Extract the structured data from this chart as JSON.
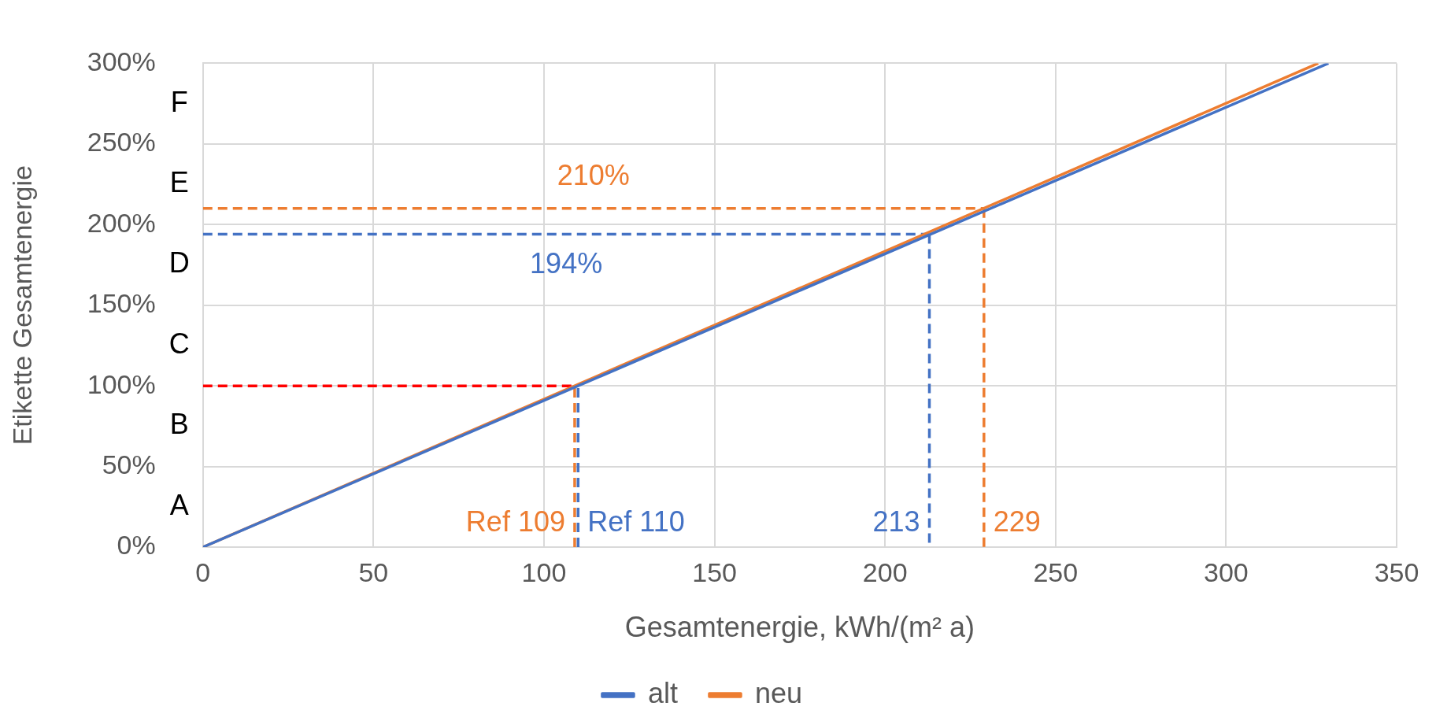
{
  "chart_data": {
    "type": "line",
    "xlabel": "Gesamtenergie, kWh/(m² a)",
    "ylabel": "Etikette Gesamtenergie",
    "xlim": [
      0,
      350
    ],
    "xticks": [
      0,
      50,
      100,
      150,
      200,
      250,
      300,
      350
    ],
    "ylim": [
      0,
      300
    ],
    "yticks": [
      {
        "value": 0,
        "label": "0%"
      },
      {
        "value": 50,
        "label": "50%"
      },
      {
        "value": 100,
        "label": "100%"
      },
      {
        "value": 150,
        "label": "150%"
      },
      {
        "value": 200,
        "label": "200%"
      },
      {
        "value": 250,
        "label": "250%"
      },
      {
        "value": 300,
        "label": "300%"
      }
    ],
    "grid": true,
    "legend": "bottom",
    "marker": "none",
    "series": [
      {
        "name": "alt",
        "color": "#4472c4",
        "x": [
          0,
          330
        ],
        "values": [
          0,
          300
        ]
      },
      {
        "name": "neu",
        "color": "#ed7d31",
        "x": [
          0,
          327
        ],
        "values": [
          0,
          300
        ]
      },
      {
        "color": "#ff0000",
        "line_style": "dashed",
        "x": [
          0,
          109
        ],
        "values": [
          100,
          100
        ]
      },
      {
        "name": "Ref 110",
        "color": "#4472c4",
        "line_style": "dashed",
        "x": [
          110,
          110
        ],
        "values": [
          0,
          100
        ]
      },
      {
        "name": "Ref 109",
        "color": "#ed7d31",
        "line_style": "dashed",
        "x": [
          109,
          109
        ],
        "values": [
          0,
          100
        ]
      },
      {
        "name": "194%",
        "color": "#4472c4",
        "line_style": "dashed",
        "x": [
          0,
          213
        ],
        "values": [
          194,
          194
        ]
      },
      {
        "name": "213",
        "color": "#4472c4",
        "line_style": "dashed",
        "x": [
          213,
          213
        ],
        "values": [
          194,
          0
        ]
      },
      {
        "name": "210%",
        "color": "#ed7d31",
        "line_style": "dashed",
        "x": [
          0,
          229
        ],
        "values": [
          210,
          210
        ]
      },
      {
        "name": "229",
        "color": "#ed7d31",
        "line_style": "dashed",
        "x": [
          229,
          229
        ],
        "values": [
          210,
          0
        ]
      }
    ],
    "annotations": [
      "A",
      "B",
      "C",
      "D",
      "E",
      "F"
    ]
  }
}
